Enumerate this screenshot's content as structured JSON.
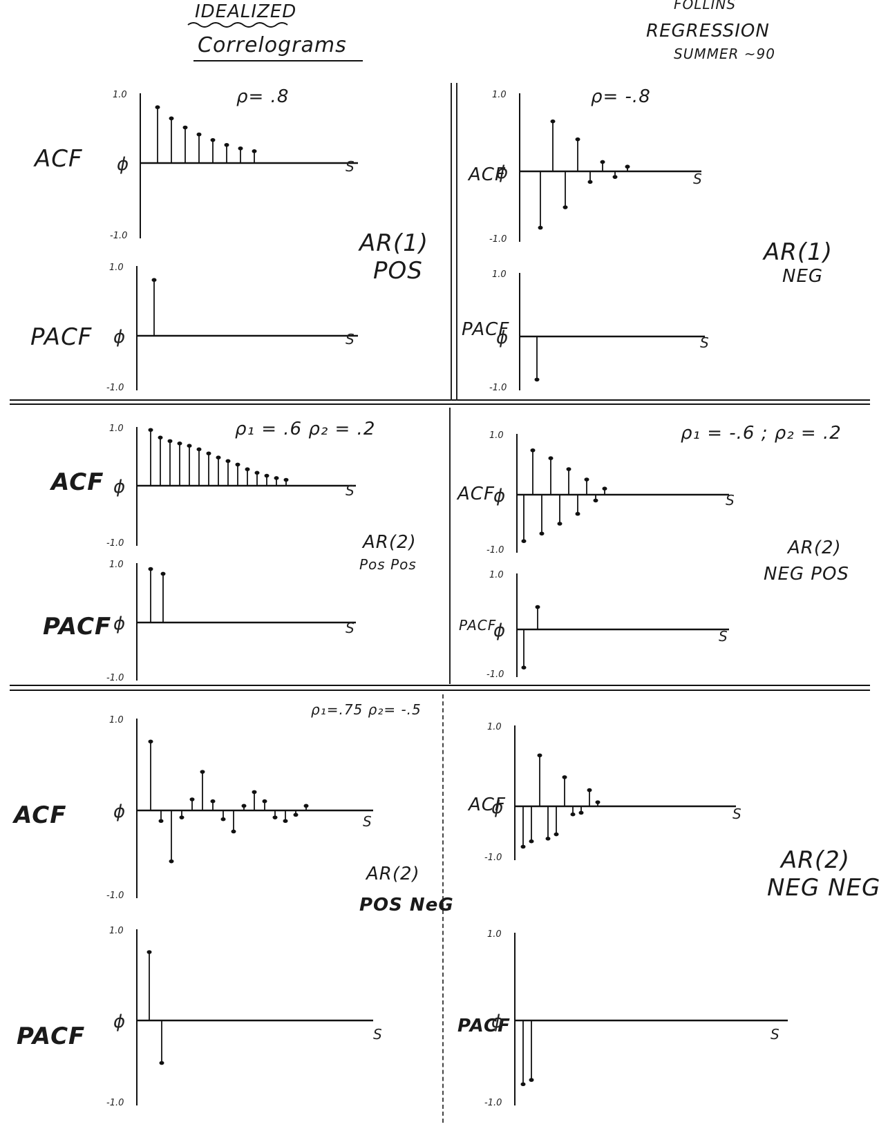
{
  "header": {
    "title_top": "IDEALIZED",
    "title_main": "Correlograms",
    "author": "FOLLINS",
    "course": "REGRESSION",
    "term": "SUMMER ~90"
  },
  "labels": {
    "acf": "ACF",
    "pacf": "PACF",
    "phi": "ϕ",
    "s": "S",
    "pos_one": "1.0",
    "neg_one": "-1.0"
  },
  "sections": [
    {
      "model": "AR(1)",
      "signs": "POS",
      "params": "ρ= .8"
    },
    {
      "model": "AR(1)",
      "signs": "NEG",
      "params": "ρ= -.8"
    },
    {
      "model": "AR(2)",
      "signs": "Pos Pos",
      "params": "ρ₁ = .6   ρ₂ = .2"
    },
    {
      "model": "AR(2)",
      "signs": "NEG POS",
      "params": "ρ₁ = -.6 ; ρ₂ = .2"
    },
    {
      "model": "AR(2)",
      "signs": "POS NeG",
      "params": "ρ₁=.75  ρ₂= -.5"
    },
    {
      "model": "AR(2)",
      "signs": "NEG NEG",
      "params": ""
    }
  ],
  "chart_data": [
    {
      "type": "bar",
      "id": "ar1pos-acf",
      "ylabel": "ϕ",
      "xlabel": "S",
      "ylim": [
        -1,
        1
      ],
      "values": [
        0.8,
        0.64,
        0.51,
        0.41,
        0.33,
        0.26,
        0.21,
        0.17
      ]
    },
    {
      "type": "bar",
      "id": "ar1pos-pacf",
      "ylabel": "ϕ",
      "xlabel": "S",
      "ylim": [
        -1,
        1
      ],
      "values": [
        0.8
      ]
    },
    {
      "type": "bar",
      "id": "ar1neg-acf",
      "ylabel": "ϕ",
      "xlabel": "S",
      "ylim": [
        -1,
        1
      ],
      "values": [
        -0.8,
        0.64,
        -0.51,
        0.41,
        -0.15,
        0.12,
        -0.08,
        0.06
      ]
    },
    {
      "type": "bar",
      "id": "ar1neg-pacf",
      "ylabel": "ϕ",
      "xlabel": "S",
      "ylim": [
        -1,
        1
      ],
      "values": [
        -0.8
      ]
    },
    {
      "type": "bar",
      "id": "ar2pospos-acf",
      "ylabel": "ϕ",
      "xlabel": "S",
      "ylim": [
        -1,
        1
      ],
      "values": [
        0.95,
        0.82,
        0.76,
        0.72,
        0.68,
        0.62,
        0.55,
        0.48,
        0.42,
        0.36,
        0.28,
        0.22,
        0.17,
        0.13,
        0.1
      ]
    },
    {
      "type": "bar",
      "id": "ar2pospos-pacf",
      "ylabel": "ϕ",
      "xlabel": "S",
      "ylim": [
        -1,
        1
      ],
      "values": [
        0.9,
        0.82
      ]
    },
    {
      "type": "bar",
      "id": "ar2negpos-acf",
      "ylabel": "ϕ",
      "xlabel": "S",
      "ylim": [
        -1,
        1
      ],
      "values": [
        -0.8,
        0.73,
        -0.67,
        0.6,
        -0.5,
        0.42,
        -0.33,
        0.25,
        -0.1,
        0.1
      ]
    },
    {
      "type": "bar",
      "id": "ar2negpos-pacf",
      "ylabel": "ϕ",
      "xlabel": "S",
      "ylim": [
        -1,
        1
      ],
      "values": [
        -0.8,
        0.4
      ]
    },
    {
      "type": "bar",
      "id": "ar2posneg-acf",
      "ylabel": "ϕ",
      "xlabel": "S",
      "ylim": [
        -1,
        1
      ],
      "values": [
        0.75,
        -0.12,
        -0.58,
        -0.08,
        0.12,
        0.42,
        0.1,
        -0.1,
        -0.24,
        0.05,
        0.2,
        0.1,
        -0.08,
        -0.12,
        -0.05,
        0.05
      ]
    },
    {
      "type": "bar",
      "id": "ar2posneg-pacf",
      "ylabel": "ϕ",
      "xlabel": "S",
      "ylim": [
        -1,
        1
      ],
      "values": [
        0.75,
        -0.5
      ]
    },
    {
      "type": "bar",
      "id": "ar2negneg-acf",
      "ylabel": "ϕ",
      "xlabel": "S",
      "ylim": [
        -1,
        1
      ],
      "values": [
        -0.75,
        -0.65,
        0.63,
        -0.6,
        -0.52,
        0.36,
        -0.15,
        -0.12,
        0.2,
        0.05
      ]
    },
    {
      "type": "bar",
      "id": "ar2negneg-pacf",
      "ylabel": "ϕ",
      "xlabel": "S",
      "ylim": [
        -1,
        1
      ],
      "values": [
        -0.75,
        -0.7
      ]
    }
  ]
}
